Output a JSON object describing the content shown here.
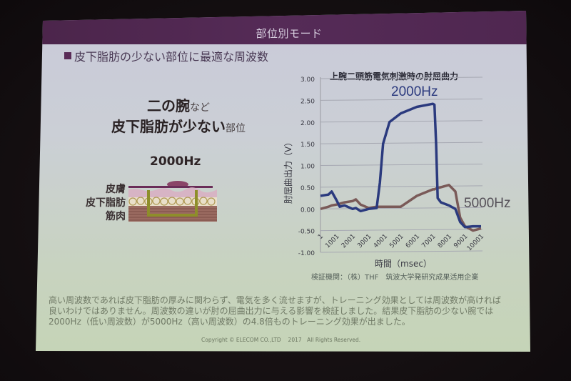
{
  "slide": {
    "header_title": "部位別モード",
    "subtitle": "皮下脂肪の少ない部位に最適な周波数",
    "headline": {
      "line1_big": "二の腕",
      "line1_small": "など",
      "line2_big": "皮下脂肪が少ない",
      "line2_small": "部位"
    },
    "diagram": {
      "frequency_label": "2000Hz",
      "layers": [
        "皮膚",
        "皮下脂肪",
        "筋肉"
      ]
    },
    "credit": "検証機関：（株）THF　筑波大学発研究成果活用企業",
    "body_text": [
      "高い周波数であれば皮下脂肪の厚みに関わらず、電気を多く流せますが、トレーニング効果としては周波数が高ければ",
      "良いわけではありません。周波数の違いが肘の屈曲出力に与える影響を検証しました。結果皮下脂肪の少ない腕では",
      "2000Hz（低い周波数）が5000Hz（高い周波数）の4.8倍ものトレーニング効果が出ました。"
    ],
    "copyright": "Copyright © ELECOM CO.,LTD　 2017　All Rights Reserved."
  },
  "colors": {
    "header": "#552b57",
    "series_2000": "#2b3a7e",
    "series_5000": "#7a5a58"
  },
  "chart_data": {
    "type": "line",
    "title": "上腕二頭筋電気刺激時の肘屈曲力",
    "xlabel": "時間（msec）",
    "ylabel": "肘屈曲出力（V）",
    "ylim": [
      -1.0,
      3.0
    ],
    "yticks": [
      "3.00",
      "2.50",
      "2.00",
      "1.50",
      "1.00",
      "0.50",
      "0.00",
      "-0.50",
      "-1.00"
    ],
    "xticks": [
      "1",
      "1001",
      "2001",
      "3001",
      "4001",
      "5001",
      "6001",
      "7001",
      "8001",
      "9001",
      "10001"
    ],
    "grid": true,
    "legend_position": "inline labels",
    "x": [
      1,
      500,
      700,
      1000,
      1200,
      1500,
      2000,
      2200,
      2500,
      3000,
      3500,
      3700,
      3900,
      4300,
      5000,
      6000,
      7000,
      7100,
      7200,
      7300,
      7500,
      8000,
      8400,
      8700,
      9000,
      9500,
      10001
    ],
    "series": [
      {
        "name": "2000Hz",
        "values": [
          0.3,
          0.33,
          0.4,
          0.2,
          0.05,
          0.08,
          0.0,
          0.02,
          -0.05,
          0.0,
          0.02,
          0.6,
          1.5,
          2.0,
          2.2,
          2.35,
          2.42,
          2.4,
          1.5,
          0.25,
          0.15,
          0.08,
          0.0,
          -0.3,
          -0.42,
          -0.4,
          -0.4
        ]
      },
      {
        "name": "5000Hz",
        "values": [
          0.0,
          0.05,
          0.08,
          0.1,
          0.12,
          0.15,
          0.18,
          0.22,
          0.1,
          0.02,
          0.05,
          0.05,
          0.05,
          0.05,
          0.05,
          0.3,
          0.45,
          0.45,
          0.47,
          0.48,
          0.5,
          0.55,
          0.4,
          -0.2,
          -0.4,
          -0.5,
          -0.45
        ]
      }
    ],
    "annotations": [
      {
        "text": "2000Hz",
        "near": "peak of 2000Hz curve"
      },
      {
        "text": "5000Hz",
        "near": "right side, y≈0.15"
      }
    ]
  }
}
